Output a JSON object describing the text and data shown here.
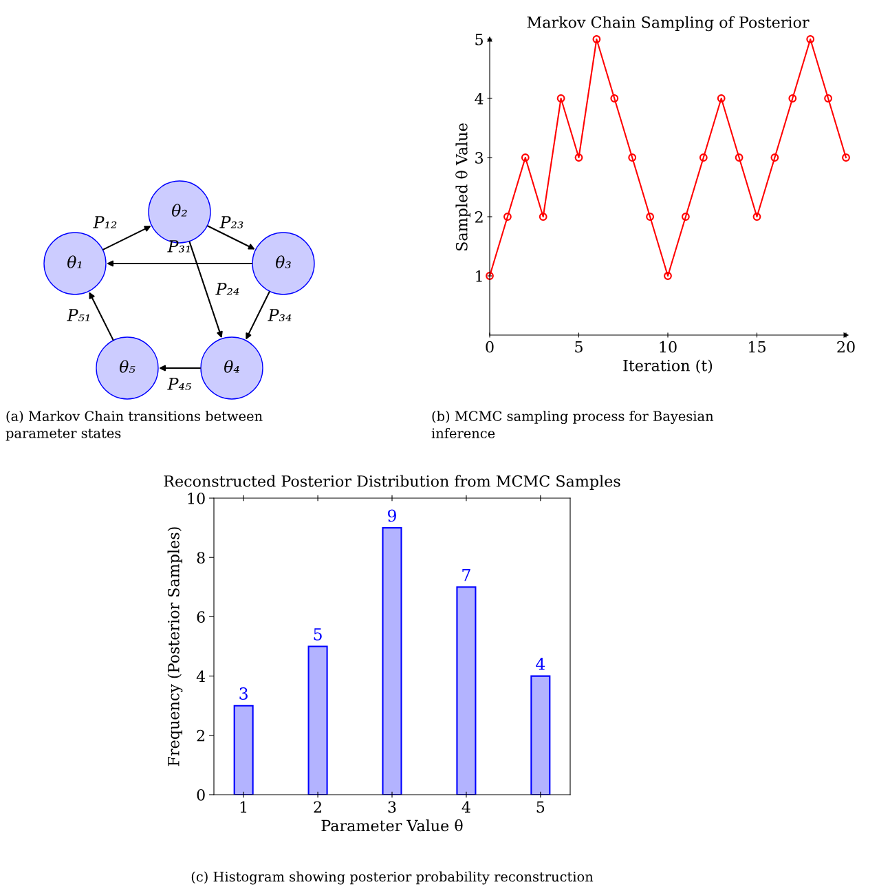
{
  "chart_data": [
    {
      "type": "other",
      "annotations": [
        "θ₁",
        "θ₂",
        "θ₃",
        "θ₄",
        "θ₅",
        "P₁₂",
        "P₂₃",
        "P₃₁",
        "P₂₄",
        "P₃₄",
        "P₅₁",
        "P₄₅",
        "(a) Markov Chain transitions between\nparameter states"
      ]
    },
    {
      "type": "line",
      "title": "Markov Chain Sampling of Posterior",
      "xlabel": "Iteration (t)",
      "ylabel": "Sampled θ Value",
      "x": [
        0,
        1,
        2,
        3,
        4,
        5,
        6,
        7,
        8,
        9,
        10,
        11,
        12,
        13,
        14,
        15,
        16,
        17,
        18,
        19,
        20
      ],
      "series": [
        {
          "color": "#ff0000",
          "values": [
            1,
            2,
            3,
            2,
            4,
            3,
            5,
            4,
            3,
            2,
            1,
            2,
            3,
            4,
            3,
            2,
            3,
            4,
            5,
            4,
            3
          ]
        }
      ],
      "marker": "circle",
      "line_style": "solid",
      "xlim": [
        0,
        20
      ],
      "ylim": [
        0,
        5
      ],
      "xticks": [
        0,
        5,
        10,
        15,
        20
      ],
      "yticks": [
        1,
        2,
        3,
        4,
        5
      ],
      "grid": false,
      "legend": false,
      "annotations": [
        "(b) MCMC sampling process for Bayesian\ninference"
      ]
    },
    {
      "type": "bar",
      "title": "Reconstructed Posterior Distribution from MCMC Samples",
      "xlabel": "Parameter Value θ",
      "ylabel": "Frequency (Posterior Samples)",
      "categories": [
        "1",
        "2",
        "3",
        "4",
        "5"
      ],
      "values": [
        3,
        5,
        9,
        7,
        4
      ],
      "color": "#b3b3ff",
      "data_labels": true,
      "ylim": [
        0,
        10
      ],
      "yticks": [
        0,
        2,
        4,
        6,
        8,
        10
      ],
      "grid": false,
      "legend": false,
      "annotations": [
        "(c) Histogram showing posterior probability reconstruction"
      ]
    }
  ]
}
